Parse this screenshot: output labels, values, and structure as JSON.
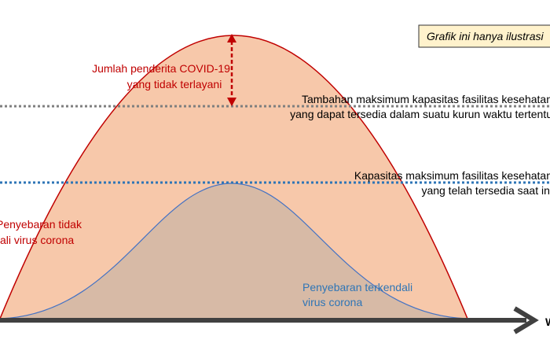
{
  "note_box": "Grafik ini hanya ilustrasi",
  "gap_label": [
    "Jumlah penderita COVID-19",
    "yang tidak terlayani"
  ],
  "additional_capacity_label": [
    "Tambahan maksimum kapasitas fasilitas kesehatan",
    "yang dapat tersedia dalam suatu kurun waktu tertentu"
  ],
  "current_capacity_label": [
    "Kapasitas maksimum fasilitas kesehatan",
    "yang telah tersedia saat ini"
  ],
  "uncontrolled_label": [
    "Penyebaran tidak",
    "ali virus corona"
  ],
  "controlled_label": [
    "Penyebaran terkendali",
    "virus corona"
  ],
  "x_axis_label": "W"
}
